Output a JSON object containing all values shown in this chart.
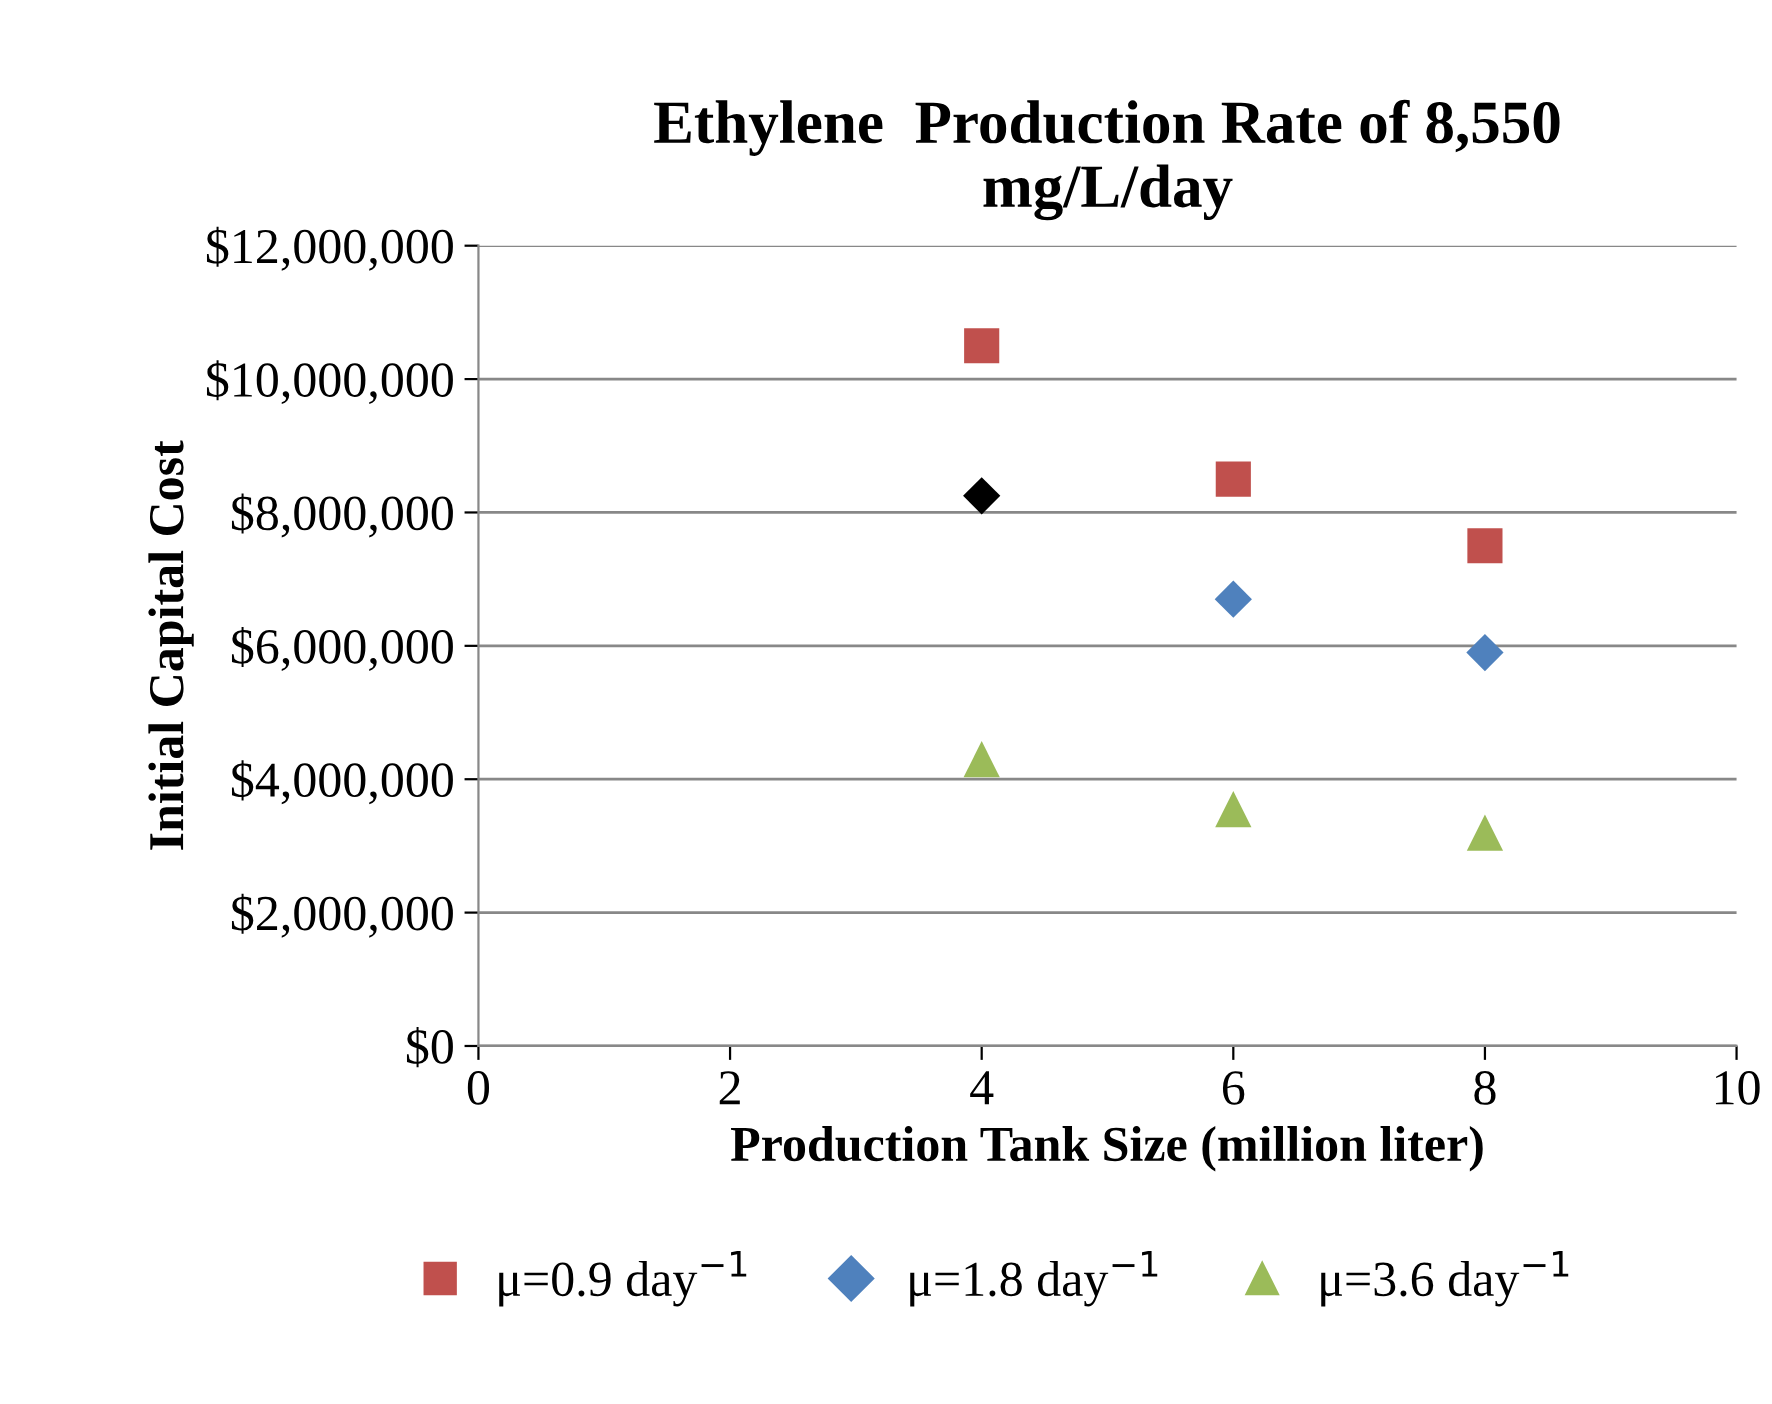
{
  "chart_data": {
    "type": "scatter",
    "title": "Ethylene  Production Rate of 8,550\nmg/L/day",
    "xlabel": "Production Tank Size (million liter)",
    "ylabel": "Initial Capital Cost",
    "xlim": [
      0,
      10
    ],
    "xticks": [
      0,
      2,
      4,
      6,
      8,
      10
    ],
    "ylim": [
      0,
      12000000
    ],
    "yticks": [
      {
        "value": 0,
        "label": "$0"
      },
      {
        "value": 2000000,
        "label": "$2,000,000"
      },
      {
        "value": 4000000,
        "label": "$4,000,000"
      },
      {
        "value": 6000000,
        "label": "$6,000,000"
      },
      {
        "value": 8000000,
        "label": "$8,000,000"
      },
      {
        "value": 10000000,
        "label": "$10,000,000"
      },
      {
        "value": 12000000,
        "label": "$12,000,000"
      }
    ],
    "grid": "y",
    "legend": "bottom",
    "series": [
      {
        "name": "μ=0.9 day$^{−1}$",
        "color": "#c0504d",
        "marker": "square",
        "x": [
          4,
          6,
          8
        ],
        "values": [
          10500000,
          8500000,
          7500000
        ]
      },
      {
        "name": "μ=1.8 day$^{−1}$",
        "color": "#4f81bd",
        "colors": [
          "#000000",
          "#4f81bd",
          "#4f81bd"
        ],
        "marker": "diamond",
        "x": [
          4,
          6,
          8
        ],
        "values": [
          8250000,
          6700000,
          5900000
        ]
      },
      {
        "name": "μ=3.6 day$^{−1}$",
        "color": "#9bbb59",
        "marker": "triangle",
        "x": [
          4,
          6,
          8
        ],
        "values": [
          4300000,
          3550000,
          3200000
        ]
      }
    ]
  }
}
